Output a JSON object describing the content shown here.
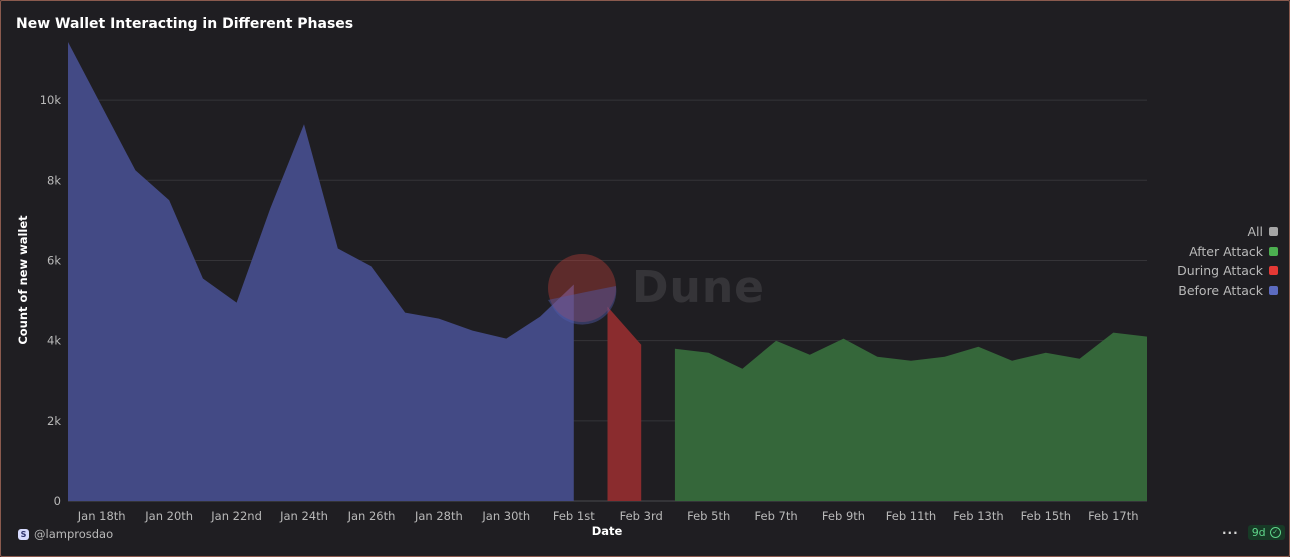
{
  "header": {
    "title": "New Wallet Interacting in Different Phases"
  },
  "watermark": {
    "text": "Dune"
  },
  "legend": {
    "items": [
      {
        "label": "All",
        "color": "#a6a6a6"
      },
      {
        "label": "After Attack",
        "color": "#4caf50"
      },
      {
        "label": "During Attack",
        "color": "#e53935"
      },
      {
        "label": "Before Attack",
        "color": "#5c6bc0"
      }
    ]
  },
  "footer": {
    "author": "@lamprosdao",
    "age": "9d",
    "menu_icon": "more-dots-icon",
    "status_icon": "check-icon"
  },
  "chart_data": {
    "type": "area",
    "title": "New Wallet Interacting in Different Phases",
    "xlabel": "Date",
    "ylabel": "Count of new wallet",
    "ylim": [
      0,
      11500
    ],
    "yticks": [
      0,
      2000,
      4000,
      6000,
      8000,
      10000
    ],
    "ytick_labels": [
      "0",
      "2k",
      "4k",
      "6k",
      "8k",
      "10k"
    ],
    "x_tick_labels": [
      "Jan 18th",
      "Jan 20th",
      "Jan 22nd",
      "Jan 24th",
      "Jan 26th",
      "Jan 28th",
      "Jan 30th",
      "Feb 1st",
      "Feb 3rd",
      "Feb 5th",
      "Feb 7th",
      "Feb 9th",
      "Feb 11th",
      "Feb 13th",
      "Feb 15th",
      "Feb 17th"
    ],
    "x": [
      "2024-01-17",
      "2024-01-18",
      "2024-01-19",
      "2024-01-20",
      "2024-01-21",
      "2024-01-22",
      "2024-01-23",
      "2024-01-24",
      "2024-01-25",
      "2024-01-26",
      "2024-01-27",
      "2024-01-28",
      "2024-01-29",
      "2024-01-30",
      "2024-01-31",
      "2024-02-01",
      "2024-02-02",
      "2024-02-03",
      "2024-02-04",
      "2024-02-05",
      "2024-02-06",
      "2024-02-07",
      "2024-02-08",
      "2024-02-09",
      "2024-02-10",
      "2024-02-11",
      "2024-02-12",
      "2024-02-13",
      "2024-02-14",
      "2024-02-15",
      "2024-02-16",
      "2024-02-17",
      "2024-02-18"
    ],
    "grid": true,
    "legend_position": "right",
    "series": [
      {
        "name": "Before Attack",
        "color": "#434a85",
        "values": [
          11450,
          9850,
          8250,
          7500,
          5550,
          4950,
          7300,
          9400,
          6300,
          5850,
          4700,
          4550,
          4250,
          4050,
          4600,
          5400,
          null,
          null,
          null,
          null,
          null,
          null,
          null,
          null,
          null,
          null,
          null,
          null,
          null,
          null,
          null,
          null,
          null
        ]
      },
      {
        "name": "During Attack",
        "color": "#8a2c2e",
        "values": [
          null,
          null,
          null,
          null,
          null,
          null,
          null,
          null,
          null,
          null,
          null,
          null,
          null,
          null,
          null,
          null,
          4850,
          3900,
          null,
          null,
          null,
          null,
          null,
          null,
          null,
          null,
          null,
          null,
          null,
          null,
          null,
          null,
          null
        ]
      },
      {
        "name": "After Attack",
        "color": "#35673a",
        "values": [
          null,
          null,
          null,
          null,
          null,
          null,
          null,
          null,
          null,
          null,
          null,
          null,
          null,
          null,
          null,
          null,
          null,
          null,
          3800,
          3700,
          3300,
          4000,
          3650,
          4050,
          3600,
          3500,
          3600,
          3850,
          3500,
          3700,
          3550,
          4200,
          4100
        ]
      }
    ]
  }
}
